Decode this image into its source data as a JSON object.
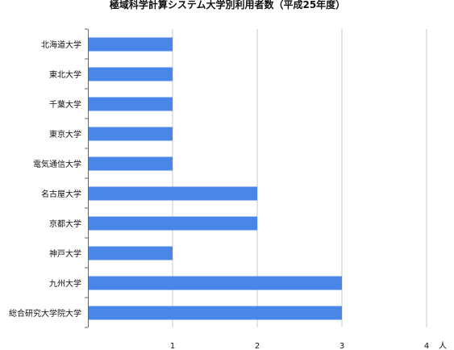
{
  "chart_data": {
    "type": "bar",
    "orientation": "horizontal",
    "title": "極域科学計算システム大学別利用者数（平成25年度）",
    "categories": [
      "北海道大学",
      "東北大学",
      "千葉大学",
      "東京大学",
      "電気通信大学",
      "名古屋大学",
      "京都大学",
      "神戸大学",
      "九州大学",
      "総合研究大学院大学"
    ],
    "values": [
      1,
      1,
      1,
      1,
      1,
      2,
      2,
      1,
      3,
      3
    ],
    "x_ticks": [
      "1",
      "2",
      "3",
      "4"
    ],
    "x_unit": "人",
    "xlim": [
      0,
      4
    ],
    "grid": true,
    "bar_color": "#4a86e8"
  }
}
